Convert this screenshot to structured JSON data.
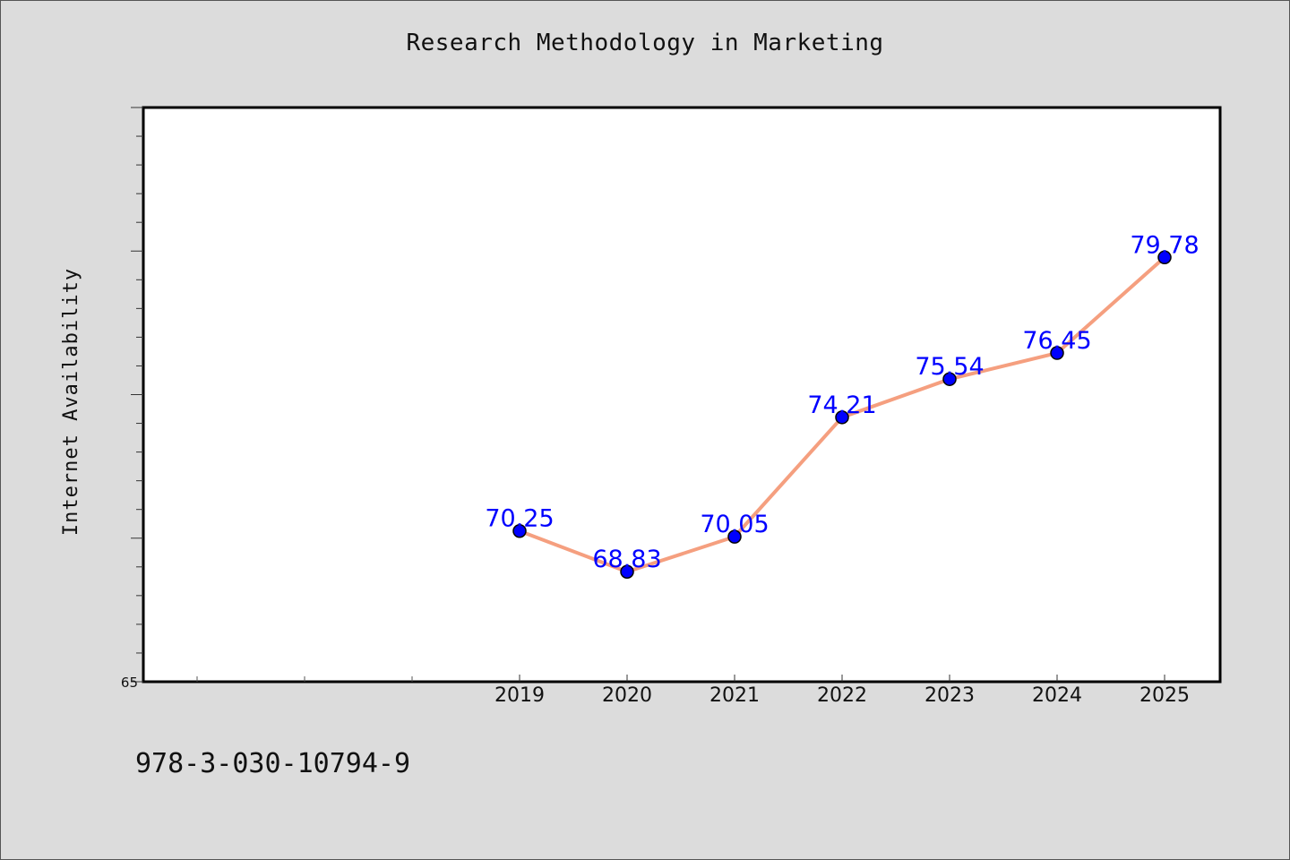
{
  "page": {
    "background": "#dcdcdc",
    "footer_text": "978-3-030-10794-9"
  },
  "chart_data": {
    "type": "line",
    "title": "Research Methodology in Marketing",
    "xlabel": "",
    "ylabel": "Internet Availability",
    "categories": [
      "2019",
      "2020",
      "2021",
      "2022",
      "2023",
      "2024",
      "2025"
    ],
    "values": [
      70.25,
      68.83,
      70.05,
      74.21,
      75.54,
      76.45,
      79.78
    ],
    "data_labels": [
      "70.25",
      "68.83",
      "70.05",
      "74.21",
      "75.54",
      "76.45",
      "79.78"
    ],
    "ylim": [
      65,
      85
    ],
    "y_tick_labels": [
      {
        "value": 65,
        "label": "65"
      }
    ],
    "x_extra_minor_ticks": 3,
    "grid": false,
    "colors": {
      "line": "#f59f7f",
      "marker": "#0000ff",
      "marker_edge": "#000000",
      "data_label": "#0000ff",
      "plot_background": "#ffffff",
      "frame": "#000000"
    }
  }
}
